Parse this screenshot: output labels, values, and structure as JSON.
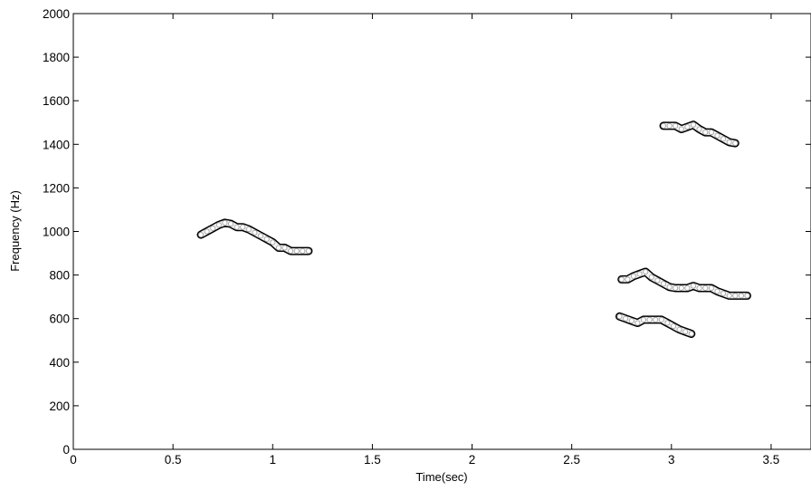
{
  "chart_data": {
    "type": "line",
    "title": "",
    "xlabel": "Time(sec)",
    "ylabel": "Frequency (Hz)",
    "xlim": [
      0,
      3.7
    ],
    "ylim": [
      0,
      2000
    ],
    "x_ticks": [
      0,
      0.5,
      1,
      1.5,
      2,
      2.5,
      3,
      3.5
    ],
    "x_tick_labels": [
      "0",
      "0.5",
      "1",
      "1.5",
      "2",
      "2.5",
      "3",
      "3.5"
    ],
    "y_ticks": [
      0,
      200,
      400,
      600,
      800,
      1000,
      1200,
      1400,
      1600,
      1800,
      2000
    ],
    "y_tick_labels": [
      "0",
      "200",
      "400",
      "600",
      "800",
      "1000",
      "1200",
      "1400",
      "1600",
      "1800",
      "2000"
    ],
    "grid": false,
    "colors": {
      "track_fill": "#f2f2f2",
      "track_outline": "#000000",
      "axis": "#000000"
    },
    "series": [
      {
        "x": [
          0.64,
          0.67,
          0.7,
          0.73,
          0.76,
          0.79,
          0.82,
          0.85,
          0.88,
          0.91,
          0.94,
          0.97,
          1.0,
          1.03,
          1.06,
          1.09,
          1.12,
          1.15,
          1.18
        ],
        "y": [
          985,
          1000,
          1015,
          1030,
          1040,
          1035,
          1020,
          1020,
          1010,
          995,
          980,
          965,
          950,
          925,
          925,
          910,
          910,
          910,
          910
        ]
      },
      {
        "x": [
          2.96,
          2.99,
          3.02,
          3.05,
          3.08,
          3.11,
          3.14,
          3.17,
          3.2,
          3.23,
          3.26,
          3.29,
          3.32
        ],
        "y": [
          1485,
          1485,
          1485,
          1470,
          1480,
          1490,
          1470,
          1455,
          1455,
          1440,
          1425,
          1410,
          1405
        ]
      },
      {
        "x": [
          2.75,
          2.78,
          2.81,
          2.84,
          2.87,
          2.9,
          2.93,
          2.96,
          2.99,
          3.02,
          3.05,
          3.08,
          3.11,
          3.14,
          3.17,
          3.2,
          3.23,
          3.26,
          3.29,
          3.32,
          3.35,
          3.38
        ],
        "y": [
          780,
          780,
          795,
          805,
          815,
          790,
          775,
          760,
          745,
          740,
          740,
          740,
          750,
          740,
          740,
          740,
          725,
          715,
          705,
          705,
          705,
          705
        ]
      },
      {
        "x": [
          2.74,
          2.77,
          2.8,
          2.83,
          2.86,
          2.89,
          2.92,
          2.95,
          2.98,
          3.01,
          3.04,
          3.07,
          3.1
        ],
        "y": [
          610,
          600,
          590,
          580,
          595,
          595,
          595,
          595,
          580,
          565,
          550,
          540,
          530
        ]
      }
    ]
  }
}
